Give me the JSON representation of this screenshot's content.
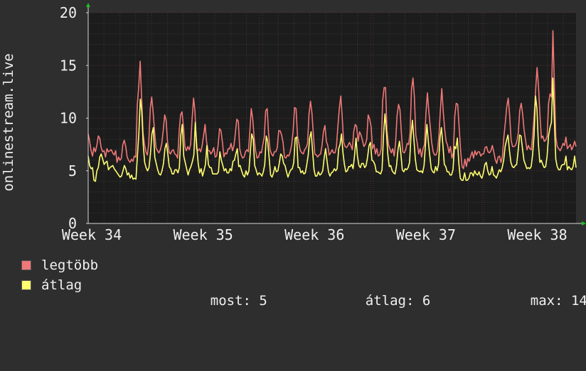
{
  "colors": {
    "background": "#2e2e2e",
    "plot_background": "#1c1c1c",
    "grid_major": "#5a2a2a",
    "grid_minor": "#3a3a3a",
    "max_series": "#f07878",
    "avg_series": "#ffff70",
    "text": "#f0f0f0",
    "axis_arrow": "#20c020"
  },
  "chart_data": {
    "type": "line",
    "ylabel": "onlinestream.live",
    "ylim": [
      0,
      20
    ],
    "y_ticks": [
      0,
      5,
      10,
      15,
      20
    ],
    "x_tick_labels": [
      "Week 34",
      "Week 35",
      "Week 36",
      "Week 37",
      "Week 38"
    ],
    "grid": true,
    "legend_placement": "bottom-left",
    "series": [
      {
        "name": "legtöbb",
        "color": "#f07878",
        "values": [
          8.5,
          7.8,
          6.9,
          6.4,
          7.2,
          6.8,
          7.4,
          8.3,
          8.1,
          7.2,
          6.8,
          6.9,
          6.3,
          7.1,
          6.8,
          6.9,
          7.0,
          6.7,
          6.5,
          6.9,
          5.8,
          6.3,
          6.0,
          6.2,
          7.5,
          7.9,
          7.3,
          6.3,
          6.0,
          5.8,
          6.1,
          5.9,
          6.4,
          6.3,
          11.2,
          12.9,
          15.4,
          12.0,
          8.6,
          7.5,
          6.8,
          6.5,
          7.6,
          10.9,
          12.0,
          10.6,
          8.7,
          7.2,
          6.9,
          6.7,
          7.0,
          7.6,
          8.8,
          10.3,
          9.8,
          7.7,
          6.8,
          6.6,
          6.9,
          7.0,
          6.6,
          6.5,
          6.2,
          8.7,
          10.3,
          10.6,
          9.2,
          7.3,
          6.9,
          7.3,
          7.0,
          7.5,
          9.9,
          11.9,
          10.6,
          7.1,
          6.9,
          7.1,
          6.8,
          7.4,
          8.4,
          9.4,
          7.8,
          6.9,
          6.9,
          6.6,
          6.8,
          7.2,
          6.3,
          6.4,
          7.4,
          9.0,
          8.8,
          7.7,
          6.3,
          6.7,
          6.6,
          7.1,
          7.1,
          7.6,
          6.9,
          7.4,
          8.6,
          9.9,
          9.7,
          7.1,
          6.5,
          6.2,
          6.3,
          6.8,
          7.0,
          6.8,
          8.7,
          10.9,
          9.9,
          8.1,
          6.9,
          6.2,
          6.3,
          6.8,
          6.7,
          7.5,
          8.2,
          10.7,
          10.9,
          8.5,
          7.0,
          6.6,
          6.4,
          6.8,
          6.8,
          7.2,
          8.8,
          8.8,
          8.4,
          7.7,
          6.3,
          6.2,
          6.5,
          6.4,
          6.8,
          7.5,
          8.8,
          11.0,
          10.9,
          8.3,
          7.6,
          6.9,
          6.7,
          6.6,
          7.0,
          7.2,
          7.6,
          10.4,
          11.6,
          10.5,
          8.5,
          6.6,
          6.5,
          6.3,
          6.5,
          6.6,
          7.4,
          8.7,
          9.3,
          7.8,
          7.4,
          6.5,
          6.7,
          7.0,
          6.7,
          6.7,
          7.3,
          9.2,
          10.9,
          12.1,
          10.1,
          7.7,
          7.3,
          7.2,
          7.4,
          7.7,
          7.4,
          7.0,
          8.7,
          9.4,
          9.2,
          7.8,
          8.7,
          8.4,
          7.9,
          7.3,
          7.5,
          8.0,
          10.3,
          9.9,
          9.2,
          7.1,
          7.5,
          6.6,
          7.1,
          6.4,
          6.5,
          7.1,
          11.6,
          12.9,
          12.9,
          8.9,
          7.5,
          7.1,
          6.7,
          7.1,
          6.4,
          7.7,
          10.2,
          11.3,
          10.8,
          8.6,
          6.8,
          6.7,
          7.0,
          7.6,
          7.5,
          8.6,
          12.7,
          13.8,
          12.0,
          8.4,
          7.6,
          6.6,
          7.1,
          6.3,
          7.1,
          7.5,
          10.4,
          12.4,
          10.6,
          9.2,
          7.7,
          6.8,
          6.5,
          6.5,
          6.9,
          8.3,
          10.7,
          12.8,
          10.6,
          8.9,
          7.8,
          7.4,
          6.7,
          7.3,
          6.2,
          6.7,
          10.2,
          11.4,
          11.3,
          9.2,
          7.0,
          5.4,
          5.2,
          6.1,
          5.4,
          6.2,
          5.9,
          6.4,
          6.8,
          6.2,
          6.9,
          6.5,
          6.8,
          6.8,
          6.4,
          6.6,
          6.6,
          7.2,
          7.3,
          6.8,
          6.7,
          6.9,
          7.4,
          6.8,
          6.1,
          5.7,
          6.3,
          6.4,
          5.8,
          6.4,
          8.2,
          9.6,
          11.1,
          11.9,
          10.3,
          7.9,
          7.3,
          7.3,
          7.4,
          7.8,
          8.6,
          10.7,
          11.4,
          10.4,
          8.9,
          7.9,
          7.0,
          7.4,
          7.1,
          7.0,
          8.4,
          10.3,
          12.7,
          14.8,
          13.0,
          10.2,
          8.1,
          8.3,
          7.8,
          7.9,
          8.3,
          11.4,
          12.3,
          12.0,
          18.3,
          12.9,
          8.2,
          7.3,
          7.1,
          6.9,
          7.2,
          7.6,
          7.4,
          8.2,
          7.1,
          7.3,
          7.5,
          7.0,
          7.3,
          7.8,
          7.3
        ]
      },
      {
        "name": "átlag",
        "color": "#ffff70",
        "values": [
          6.4,
          5.5,
          5.2,
          5.3,
          4.1,
          4.0,
          5.0,
          5.3,
          6.3,
          6.6,
          6.1,
          5.6,
          5.8,
          5.9,
          5.1,
          5.3,
          5.4,
          5.5,
          5.2,
          5.0,
          4.8,
          4.6,
          4.4,
          4.5,
          5.0,
          5.5,
          5.2,
          4.6,
          4.8,
          4.3,
          4.6,
          4.2,
          4.3,
          4.2,
          6.4,
          8.5,
          11.8,
          10.7,
          7.5,
          5.8,
          5.3,
          5.0,
          5.3,
          6.6,
          8.5,
          9.1,
          6.3,
          5.7,
          5.1,
          4.7,
          4.6,
          5.0,
          5.7,
          7.1,
          7.6,
          6.6,
          5.4,
          5.2,
          4.7,
          4.7,
          5.1,
          5.1,
          4.8,
          5.3,
          8.4,
          9.4,
          6.4,
          5.8,
          5.2,
          4.6,
          5.1,
          5.4,
          5.9,
          6.5,
          9.6,
          7.3,
          5.7,
          4.8,
          5.2,
          4.5,
          5.0,
          5.6,
          7.4,
          5.6,
          5.3,
          5.3,
          4.7,
          4.7,
          4.7,
          4.7,
          4.9,
          6.8,
          6.0,
          5.5,
          5.0,
          5.2,
          4.8,
          4.8,
          5.2,
          5.0,
          5.9,
          6.0,
          6.6,
          7.1,
          5.4,
          5.5,
          5.0,
          4.6,
          4.4,
          5.0,
          4.6,
          5.0,
          6.8,
          8.5,
          8.0,
          5.5,
          5.1,
          4.6,
          4.8,
          4.7,
          4.5,
          4.9,
          5.6,
          8.3,
          7.8,
          6.2,
          4.6,
          4.4,
          4.8,
          5.4,
          4.9,
          5.0,
          5.7,
          6.6,
          6.4,
          5.7,
          5.5,
          4.9,
          4.4,
          4.8,
          5.1,
          5.2,
          5.8,
          8.1,
          8.2,
          5.3,
          5.3,
          4.8,
          5.0,
          4.7,
          4.8,
          5.6,
          6.5,
          8.1,
          8.7,
          6.9,
          5.1,
          4.5,
          4.5,
          4.9,
          4.6,
          4.7,
          5.0,
          6.2,
          7.1,
          5.9,
          4.9,
          4.5,
          4.8,
          4.9,
          5.2,
          5.0,
          5.2,
          7.1,
          7.5,
          8.5,
          6.7,
          5.6,
          4.9,
          5.0,
          5.4,
          5.4,
          5.6,
          5.2,
          6.5,
          8.1,
          6.4,
          5.5,
          5.3,
          5.7,
          5.7,
          5.3,
          5.5,
          6.3,
          7.4,
          7.7,
          6.0,
          5.9,
          5.6,
          4.9,
          4.9,
          4.8,
          4.7,
          5.1,
          8.4,
          10.4,
          8.8,
          6.5,
          5.4,
          5.5,
          5.0,
          4.8,
          4.7,
          5.5,
          7.0,
          7.8,
          6.6,
          5.1,
          4.9,
          5.2,
          5.1,
          5.3,
          5.8,
          8.3,
          9.8,
          8.0,
          6.1,
          5.1,
          5.0,
          4.9,
          5.0,
          4.8,
          5.5,
          7.5,
          9.4,
          7.7,
          6.4,
          5.2,
          4.9,
          4.8,
          5.4,
          5.0,
          5.6,
          8.1,
          9.1,
          7.5,
          5.6,
          5.4,
          4.9,
          4.9,
          4.6,
          4.6,
          5.1,
          7.3,
          7.1,
          8.1,
          5.8,
          4.3,
          4.1,
          4.1,
          4.8,
          4.1,
          4.1,
          4.3,
          4.8,
          4.8,
          4.5,
          5.0,
          4.7,
          4.6,
          4.9,
          4.5,
          4.3,
          4.8,
          5.6,
          5.8,
          5.0,
          4.6,
          4.7,
          5.4,
          4.6,
          4.5,
          4.3,
          4.7,
          5.1,
          4.9,
          5.3,
          6.0,
          7.3,
          7.9,
          8.4,
          6.9,
          5.8,
          5.4,
          5.3,
          5.5,
          5.6,
          6.9,
          8.4,
          8.3,
          7.1,
          6.0,
          5.6,
          5.2,
          5.3,
          5.2,
          5.4,
          6.5,
          8.4,
          12.1,
          10.9,
          7.5,
          5.8,
          6.0,
          5.6,
          5.3,
          5.4,
          6.4,
          8.3,
          9.1,
          9.6,
          13.8,
          9.8,
          6.1,
          5.4,
          5.1,
          5.1,
          5.5,
          5.6,
          5.6,
          6.4,
          5.1,
          5.4,
          5.2,
          5.1,
          5.4,
          6.4,
          5.3
        ]
      }
    ]
  },
  "legend": {
    "max_label": "legtöbb",
    "avg_label": "átlag",
    "now_label": "most:",
    "now_value": "5",
    "avg_stat_label": "átlag:",
    "avg_stat_value": "6",
    "max_stat_label": "max:",
    "max_stat_value": "14"
  }
}
